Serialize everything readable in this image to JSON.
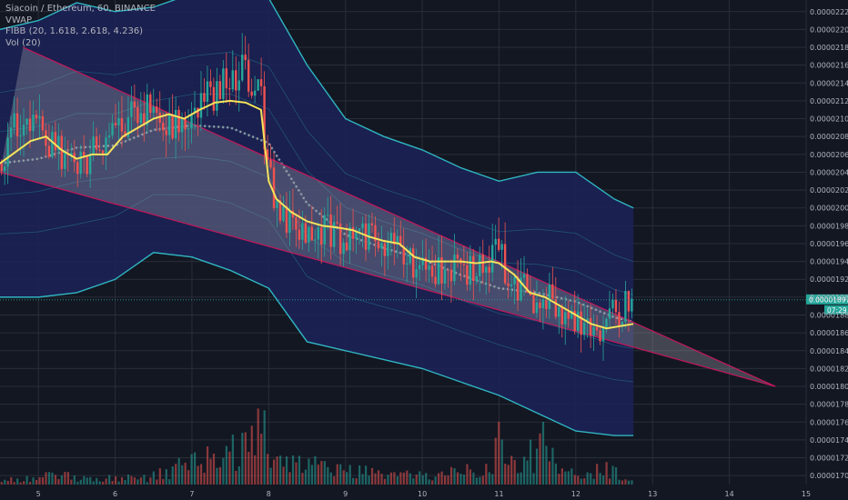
{
  "colors": {
    "background": "#131722",
    "grid": "#2a2e39",
    "up": "#26a69a",
    "down": "#ef5350",
    "vwap": "#f5e35c",
    "band_fill": "#1c2257",
    "band_outer": "#2fb5c2",
    "wedge_fill": "#9e9ea5",
    "wedge_line": "#c2185b",
    "price_tag": "#26a69a",
    "axis_text": "#b2b5be",
    "ma_dots": "#9598a1"
  },
  "legend": {
    "symbol_line": "Siacoin / Ethereum, 60, BINANCE",
    "indicator_1": "VWAP",
    "indicator_2": "FIBB (20, 1.618, 2.618, 4.236)",
    "indicator_3": "Vol (20)"
  },
  "price_tag": {
    "value": "0.00001897",
    "countdown": "07:29"
  },
  "chart_data": {
    "type": "candlestick",
    "title": "Siacoin / Ethereum, 60, BINANCE",
    "xlabel": "",
    "ylabel": "",
    "x_ticks": [
      "5",
      "6",
      "7",
      "8",
      "9",
      "10",
      "11",
      "12",
      "13",
      "14",
      "15"
    ],
    "x_tick_values": [
      5,
      6,
      7,
      8,
      9,
      10,
      11,
      12,
      13,
      14,
      15
    ],
    "xlim": [
      4.5,
      15.0
    ],
    "y_ticks": [
      "0.00001700",
      "0.00001720",
      "0.00001740",
      "0.00001760",
      "0.00001780",
      "0.00001800",
      "0.00001820",
      "0.00001840",
      "0.00001860",
      "0.00001880",
      "0.00001900",
      "0.00001920",
      "0.00001940",
      "0.00001960",
      "0.00001980",
      "0.00002000",
      "0.00002020",
      "0.00002040",
      "0.00002060",
      "0.00002080",
      "0.00002100",
      "0.00002120",
      "0.00002140",
      "0.00002160",
      "0.00002180",
      "0.00002200",
      "0.00002220"
    ],
    "ylim": [
      1.69e-05,
      2.233e-05
    ],
    "grid": true,
    "price_series": {
      "name": "SCETH",
      "x": [
        4.5,
        4.7,
        4.9,
        5.1,
        5.3,
        5.5,
        5.7,
        5.9,
        6.1,
        6.3,
        6.5,
        6.7,
        6.9,
        7.1,
        7.3,
        7.5,
        7.7,
        7.9,
        8.0,
        8.1,
        8.3,
        8.5,
        8.7,
        8.9,
        9.1,
        9.3,
        9.5,
        9.7,
        9.9,
        10.1,
        10.3,
        10.5,
        10.7,
        10.9,
        11.0,
        11.1,
        11.3,
        11.45,
        11.6,
        11.8,
        11.95,
        12.1,
        12.3,
        12.5,
        12.75
      ],
      "values": [
        2.05e-05,
        2.09e-05,
        2.1e-05,
        2.08e-05,
        2.06e-05,
        2.05e-05,
        2.06e-05,
        2.08e-05,
        2.09e-05,
        2.11e-05,
        2.115e-05,
        2.095e-05,
        2.105e-05,
        2.115e-05,
        2.13e-05,
        2.145e-05,
        2.155e-05,
        2.12e-05,
        2.04e-05,
        2e-05,
        1.985e-05,
        1.98e-05,
        1.975e-05,
        1.97e-05,
        1.96e-05,
        1.965e-05,
        1.96e-05,
        1.95e-05,
        1.94e-05,
        1.93e-05,
        1.935e-05,
        1.935e-05,
        1.93e-05,
        1.945e-05,
        1.955e-05,
        1.925e-05,
        1.91e-05,
        1.9e-05,
        1.9e-05,
        1.89e-05,
        1.875e-05,
        1.87e-05,
        1.865e-05,
        1.88e-05,
        1.897e-05
      ]
    },
    "vwap_series": {
      "name": "VWAP",
      "x": [
        4.5,
        4.9,
        5.1,
        5.3,
        5.5,
        5.7,
        5.9,
        6.1,
        6.3,
        6.5,
        6.7,
        6.9,
        7.1,
        7.3,
        7.5,
        7.7,
        7.9,
        8.0,
        8.1,
        8.3,
        8.5,
        8.7,
        8.9,
        9.1,
        9.3,
        9.5,
        9.7,
        9.9,
        10.1,
        10.3,
        10.5,
        10.7,
        10.9,
        11.0,
        11.2,
        11.4,
        11.6,
        11.8,
        12.0,
        12.2,
        12.4,
        12.75
      ],
      "values": [
        2.05e-05,
        2.075e-05,
        2.08e-05,
        2.065e-05,
        2.055e-05,
        2.06e-05,
        2.06e-05,
        2.08e-05,
        2.09e-05,
        2.1e-05,
        2.105e-05,
        2.1e-05,
        2.11e-05,
        2.118e-05,
        2.12e-05,
        2.118e-05,
        2.11e-05,
        2.03e-05,
        2.01e-05,
        1.995e-05,
        1.985e-05,
        1.98e-05,
        1.978e-05,
        1.975e-05,
        1.968e-05,
        1.963e-05,
        1.96e-05,
        1.945e-05,
        1.94e-05,
        1.94e-05,
        1.94e-05,
        1.938e-05,
        1.94e-05,
        1.938e-05,
        1.925e-05,
        1.905e-05,
        1.9e-05,
        1.89e-05,
        1.88e-05,
        1.87e-05,
        1.865e-05,
        1.87e-05
      ]
    },
    "fib_bands": {
      "name": "FIBB (20, 1.618, 2.618, 4.236)",
      "x": [
        4.5,
        5.0,
        5.5,
        6.0,
        6.5,
        7.0,
        7.5,
        8.0,
        8.5,
        9.0,
        9.5,
        10.0,
        10.5,
        11.0,
        11.5,
        12.0,
        12.5,
        12.75
      ],
      "upper": [
        2.2e-05,
        2.21e-05,
        2.23e-05,
        2.22e-05,
        2.225e-05,
        2.24e-05,
        2.25e-05,
        2.235e-05,
        2.16e-05,
        2.1e-05,
        2.08e-05,
        2.065e-05,
        2.045e-05,
        2.03e-05,
        2.04e-05,
        2.04e-05,
        2.01e-05,
        2e-05
      ],
      "lower": [
        1.9e-05,
        1.9e-05,
        1.905e-05,
        1.92e-05,
        1.95e-05,
        1.945e-05,
        1.93e-05,
        1.91e-05,
        1.85e-05,
        1.84e-05,
        1.83e-05,
        1.82e-05,
        1.805e-05,
        1.79e-05,
        1.77e-05,
        1.75e-05,
        1.745e-05,
        1.745e-05
      ]
    },
    "volume": {
      "name": "Vol (20)",
      "x": [
        4.6,
        4.9,
        5.2,
        5.5,
        5.8,
        6.1,
        6.4,
        6.7,
        7.0,
        7.3,
        7.6,
        7.9,
        8.2,
        8.5,
        8.8,
        9.1,
        9.4,
        9.7,
        10.0,
        10.3,
        10.6,
        10.9,
        11.0,
        11.2,
        11.5,
        11.55,
        11.8,
        12.1,
        12.4,
        12.5,
        12.7
      ],
      "values": [
        5,
        7,
        10,
        8,
        6,
        9,
        7,
        14,
        25,
        30,
        40,
        55,
        30,
        20,
        18,
        15,
        12,
        10,
        9,
        12,
        14,
        18,
        65,
        22,
        35,
        70,
        12,
        10,
        20,
        15,
        6
      ]
    },
    "wedge": {
      "upper_line": {
        "x": [
          4.8,
          14.6
        ],
        "y": [
          2.18e-05,
          1.8e-05
        ]
      },
      "lower_line": {
        "x": [
          4.5,
          14.6
        ],
        "y": [
          2.04e-05,
          1.8e-05
        ]
      }
    }
  }
}
